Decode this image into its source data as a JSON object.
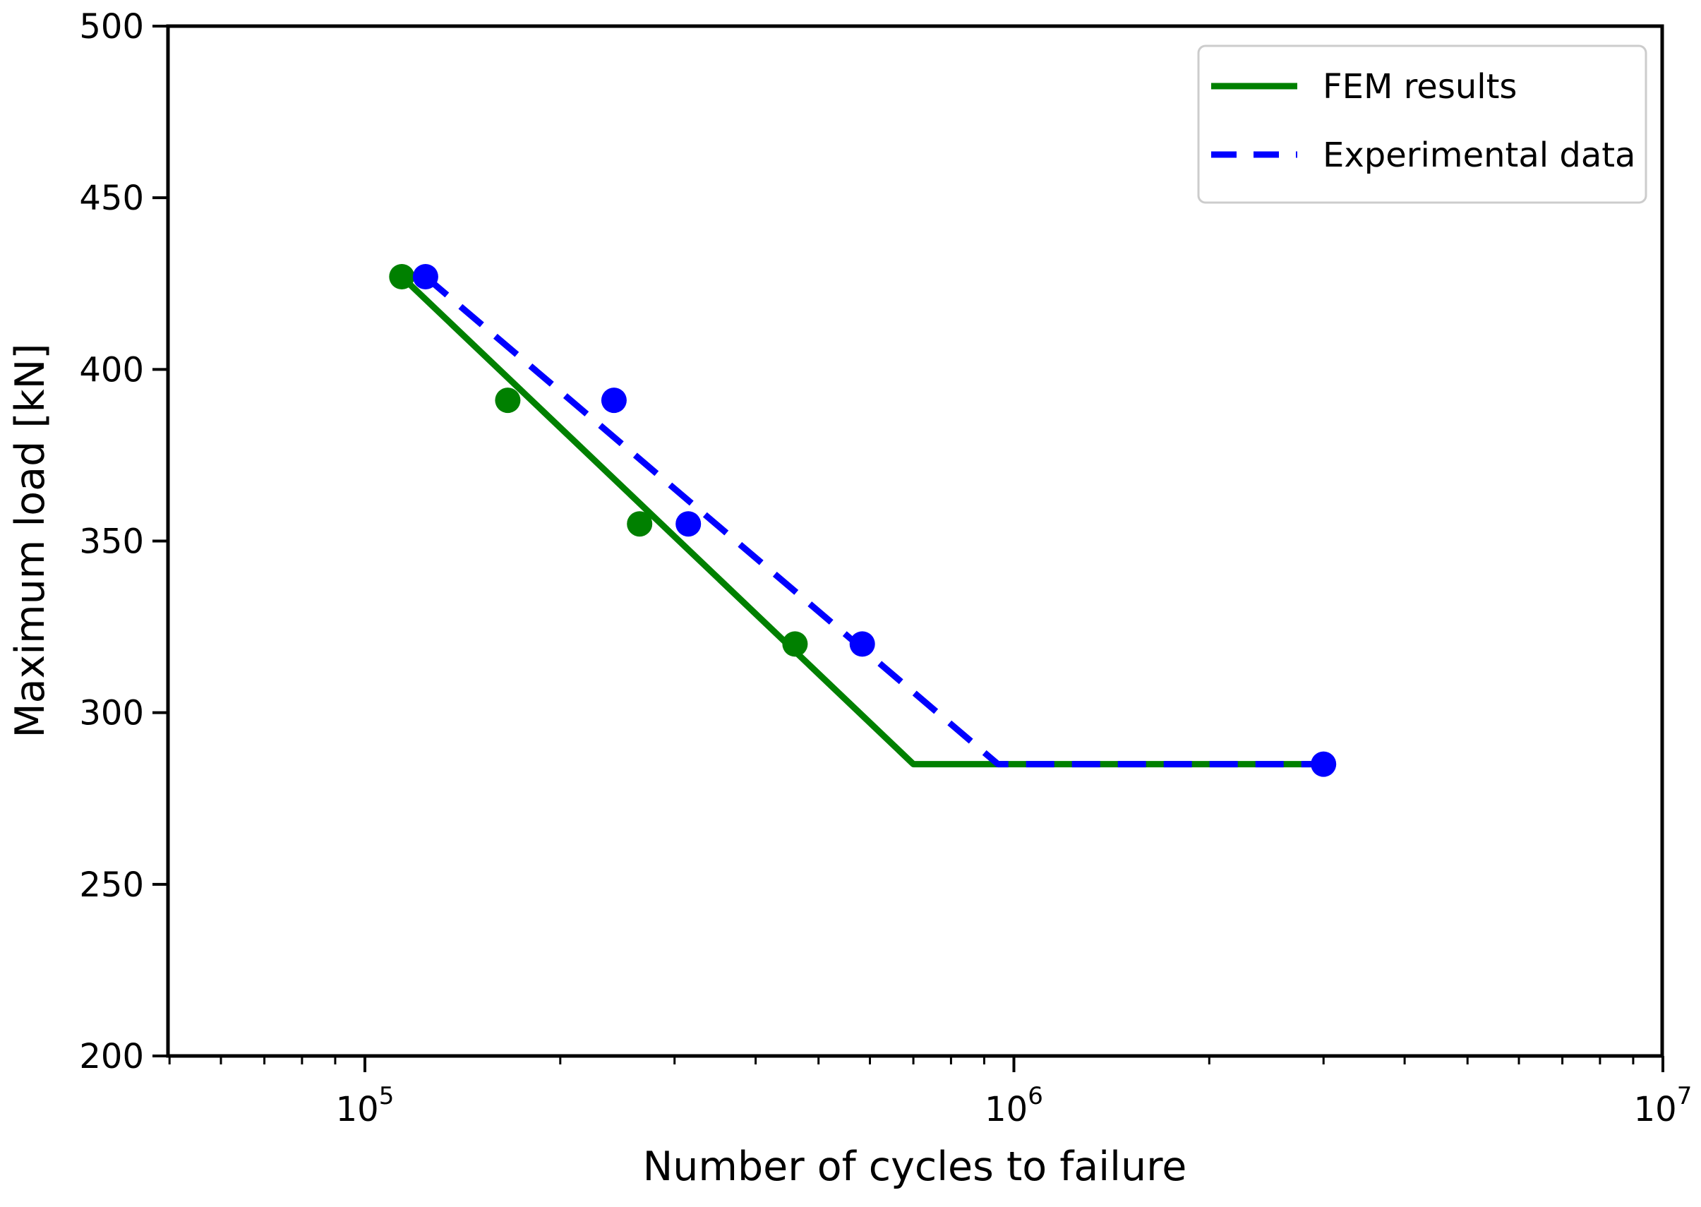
{
  "figure": {
    "background": "#ffffff"
  },
  "chart_data": {
    "type": "line",
    "title": "",
    "xlabel": "Number of cycles to failure",
    "ylabel": "Maximum load [kN]",
    "x_scale": "log10",
    "xlim": [
      50000,
      10000000
    ],
    "ylim": [
      200,
      500
    ],
    "grid": false,
    "legend_position": "upper right",
    "colors": {
      "fem": "#008000",
      "experimental": "#0000ff",
      "axis": "#000000",
      "legend_border": "#cccccc"
    },
    "yticks": [
      500,
      450,
      400,
      350,
      300,
      250,
      200
    ],
    "xticks": [
      {
        "value": 100000,
        "label": "10",
        "sup": "5"
      },
      {
        "value": 1000000,
        "label": "10",
        "sup": "6"
      },
      {
        "value": 10000000,
        "label": "10",
        "sup": "7"
      }
    ],
    "series": [
      {
        "name": "FEM results",
        "color": "#008000",
        "line_style": "solid",
        "marker": "circle",
        "scatter_points": [
          [
            114000,
            427
          ],
          [
            166000,
            391
          ],
          [
            265000,
            355
          ],
          [
            460000,
            320
          ]
        ],
        "line_vertices": [
          [
            114000,
            427
          ],
          [
            700000,
            285
          ],
          [
            3000000,
            285
          ]
        ]
      },
      {
        "name": "Experimental data",
        "color": "#0000ff",
        "line_style": "dashed",
        "marker": "circle",
        "scatter_points": [
          [
            124000,
            427
          ],
          [
            242000,
            391
          ],
          [
            315000,
            355
          ],
          [
            584000,
            320
          ],
          [
            3000000,
            285
          ]
        ],
        "line_vertices": [
          [
            124000,
            427
          ],
          [
            945000,
            285
          ],
          [
            3000000,
            285
          ]
        ]
      }
    ],
    "fatigue_limit_plateau_kN": 285
  }
}
